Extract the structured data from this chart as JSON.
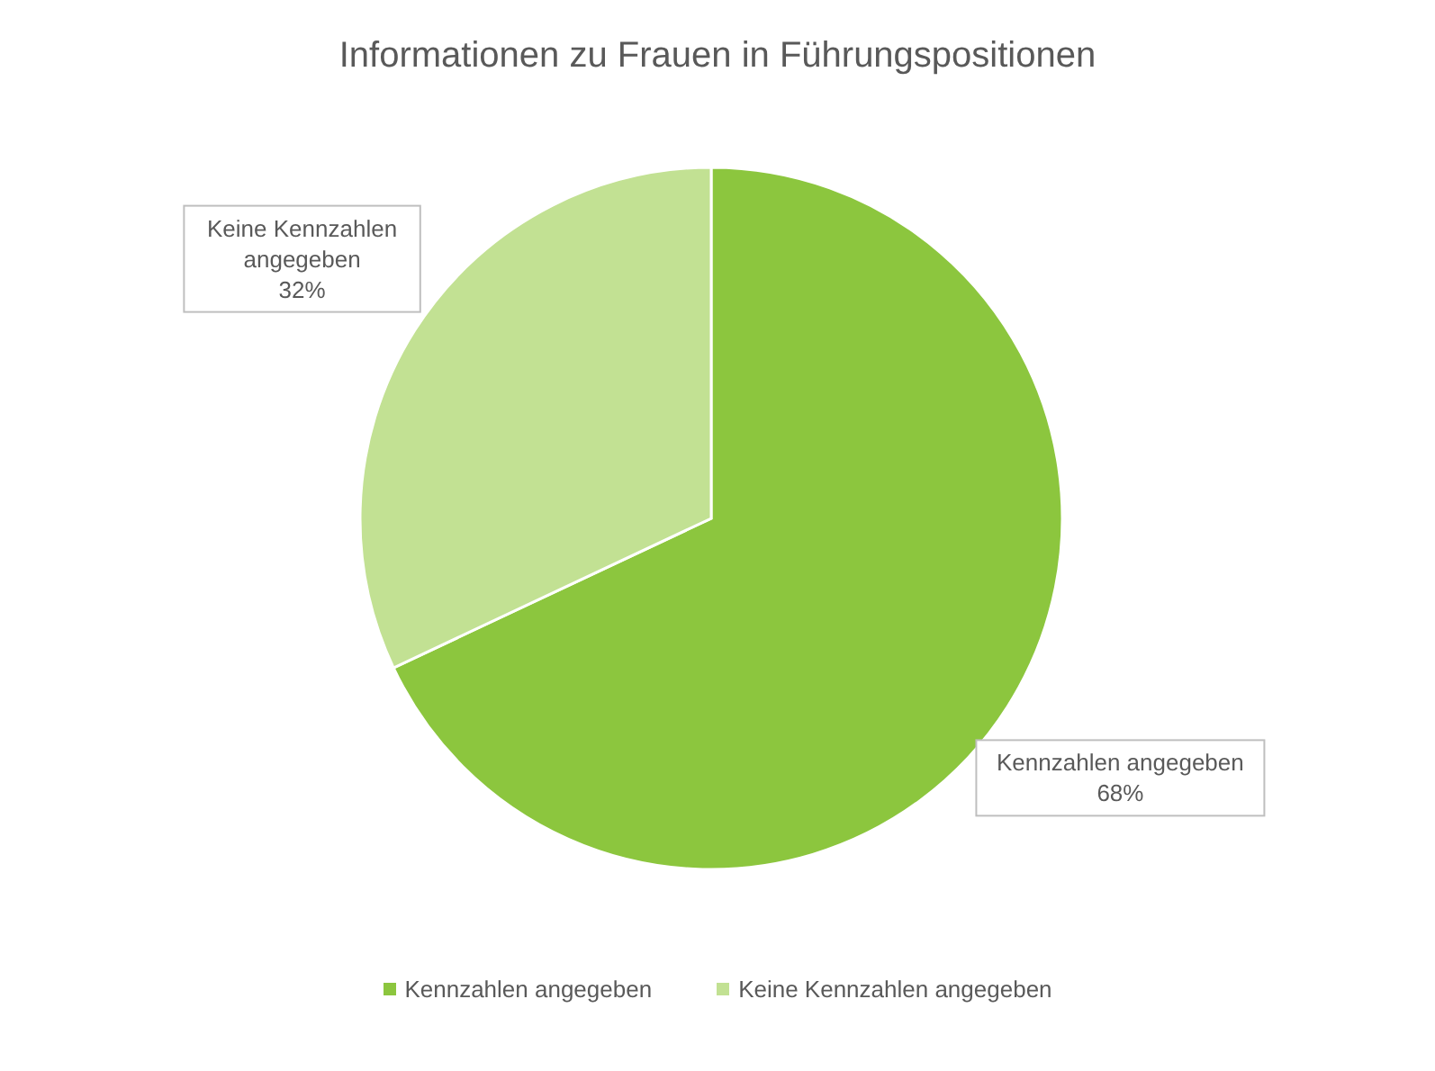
{
  "chart_data": {
    "type": "pie",
    "title": "Informationen zu Frauen in Führungspositionen",
    "categories": [
      "Kennzahlen angegeben",
      "Keine Kennzahlen angegeben"
    ],
    "values": [
      68,
      32
    ],
    "colors": [
      "#8cc63e",
      "#c2e193"
    ],
    "value_labels": [
      "68%",
      "32%"
    ],
    "legend": "bottom"
  }
}
